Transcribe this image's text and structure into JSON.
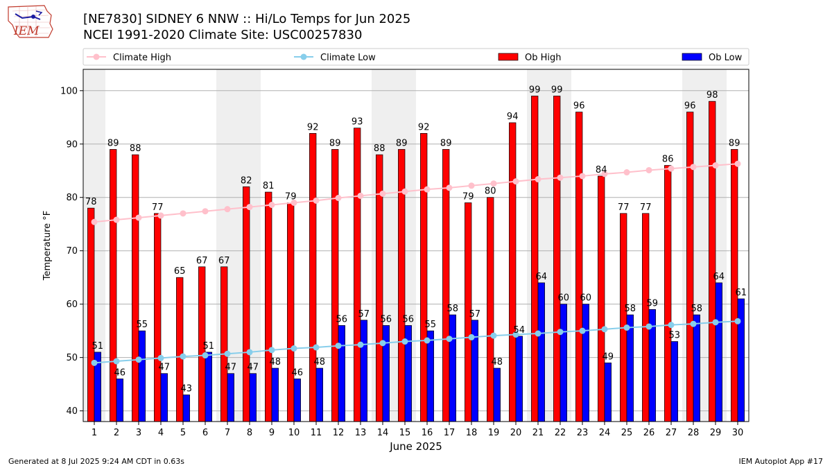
{
  "logo": {
    "text": "IEM"
  },
  "header": {
    "title": "[NE7830] SIDNEY 6 NNW :: Hi/Lo Temps for Jun 2025",
    "subtitle": "NCEI 1991-2020 Climate Site: USC00257830"
  },
  "footer": {
    "left": "Generated at 8 Jul 2025 9:24 AM CDT in 0.63s",
    "right": "IEM Autoplot App #17"
  },
  "colors": {
    "ob_high": "#ff0000",
    "ob_low": "#0000ff",
    "climate_high": "#ffc0cb",
    "climate_low": "#87ceeb",
    "weekend_shade": "#efefef",
    "grid": "#b0b0b0"
  },
  "chart_data": {
    "type": "bar",
    "xlabel": "June 2025",
    "ylabel": "Temperature °F",
    "ylim": [
      38,
      104
    ],
    "yticks": [
      40,
      50,
      60,
      70,
      80,
      90,
      100
    ],
    "grid": "horizontal",
    "legend_position": "top",
    "categories": [
      "1",
      "2",
      "3",
      "4",
      "5",
      "6",
      "7",
      "8",
      "9",
      "10",
      "11",
      "12",
      "13",
      "14",
      "15",
      "16",
      "17",
      "18",
      "19",
      "20",
      "21",
      "22",
      "23",
      "24",
      "25",
      "26",
      "27",
      "28",
      "29",
      "30"
    ],
    "shaded_day_ranges": [
      [
        1,
        1
      ],
      [
        7,
        8
      ],
      [
        14,
        15
      ],
      [
        21,
        22
      ],
      [
        28,
        29
      ]
    ],
    "series": [
      {
        "name": "Ob High",
        "kind": "bar",
        "values": [
          78,
          89,
          88,
          77,
          65,
          67,
          67,
          82,
          81,
          79,
          92,
          89,
          93,
          88,
          89,
          92,
          89,
          79,
          80,
          94,
          99,
          99,
          96,
          84,
          77,
          77,
          86,
          96,
          98,
          89
        ]
      },
      {
        "name": "Ob Low",
        "kind": "bar",
        "values": [
          51,
          46,
          55,
          47,
          43,
          51,
          47,
          47,
          48,
          46,
          48,
          56,
          57,
          56,
          56,
          55,
          58,
          57,
          48,
          54,
          64,
          60,
          60,
          49,
          58,
          59,
          53,
          58,
          64,
          61
        ]
      },
      {
        "name": "Climate High",
        "kind": "line",
        "values": [
          75.4,
          75.8,
          76.2,
          76.6,
          77.0,
          77.4,
          77.8,
          78.2,
          78.6,
          79.0,
          79.4,
          79.9,
          80.3,
          80.7,
          81.1,
          81.5,
          81.8,
          82.2,
          82.6,
          83.0,
          83.4,
          83.7,
          84.0,
          84.4,
          84.7,
          85.1,
          85.4,
          85.7,
          86.0,
          86.3
        ]
      },
      {
        "name": "Climate Low",
        "kind": "line",
        "values": [
          49.0,
          49.3,
          49.6,
          49.9,
          50.2,
          50.4,
          50.7,
          51.0,
          51.4,
          51.7,
          51.9,
          52.2,
          52.4,
          52.7,
          53.0,
          53.2,
          53.5,
          53.8,
          54.1,
          54.3,
          54.5,
          54.8,
          55.0,
          55.3,
          55.6,
          55.8,
          56.1,
          56.3,
          56.6,
          56.8
        ]
      }
    ]
  }
}
